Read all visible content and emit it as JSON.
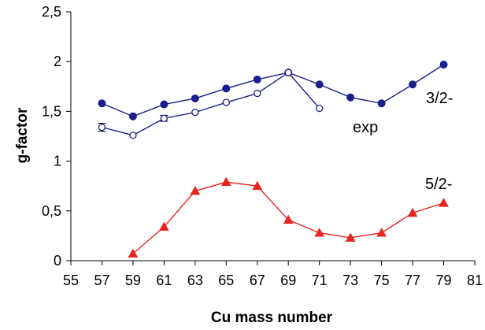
{
  "chart_data": {
    "type": "line",
    "title": "",
    "xlabel": "Cu mass number",
    "ylabel": "g-factor",
    "xlim": [
      55,
      81
    ],
    "ylim": [
      0,
      2.5
    ],
    "x_ticks": [
      "55",
      "57",
      "59",
      "61",
      "63",
      "65",
      "67",
      "69",
      "71",
      "73",
      "75",
      "77",
      "79",
      "81"
    ],
    "y_ticks": [
      "0",
      "0,5",
      "1",
      "1,5",
      "2",
      "2,5"
    ],
    "x_tick_values": [
      55,
      57,
      59,
      61,
      63,
      65,
      67,
      69,
      71,
      73,
      75,
      77,
      79,
      81
    ],
    "y_tick_values": [
      0,
      0.5,
      1,
      1.5,
      2,
      2.5
    ],
    "grid": false,
    "series": [
      {
        "name": "3/2-",
        "color": "#1a1f8c",
        "marker": "filled-circle",
        "x": [
          57,
          59,
          61,
          63,
          65,
          67,
          69,
          71,
          73,
          75,
          77,
          79
        ],
        "y": [
          1.58,
          1.45,
          1.57,
          1.63,
          1.73,
          1.82,
          1.89,
          1.77,
          1.64,
          1.58,
          1.77,
          1.97
        ]
      },
      {
        "name": "exp",
        "color": "#1a1f8c",
        "marker": "open-circle",
        "error_bars": true,
        "x": [
          57,
          59,
          61,
          63,
          65,
          67,
          69,
          71
        ],
        "y": [
          1.34,
          1.26,
          1.43,
          1.49,
          1.59,
          1.68,
          1.89,
          1.53
        ],
        "err": [
          0.04,
          0.0,
          0.03,
          0.0,
          0.0,
          0.0,
          0.0,
          0.0
        ]
      },
      {
        "name": "5/2-",
        "color": "#e8241f",
        "marker": "filled-triangle",
        "x": [
          59,
          61,
          63,
          65,
          67,
          69,
          71,
          73,
          75,
          77,
          79
        ],
        "y": [
          0.07,
          0.34,
          0.7,
          0.79,
          0.75,
          0.41,
          0.28,
          0.23,
          0.28,
          0.48,
          0.58
        ]
      }
    ],
    "annotations": [
      "3/2-",
      "exp",
      "5/2-"
    ]
  }
}
